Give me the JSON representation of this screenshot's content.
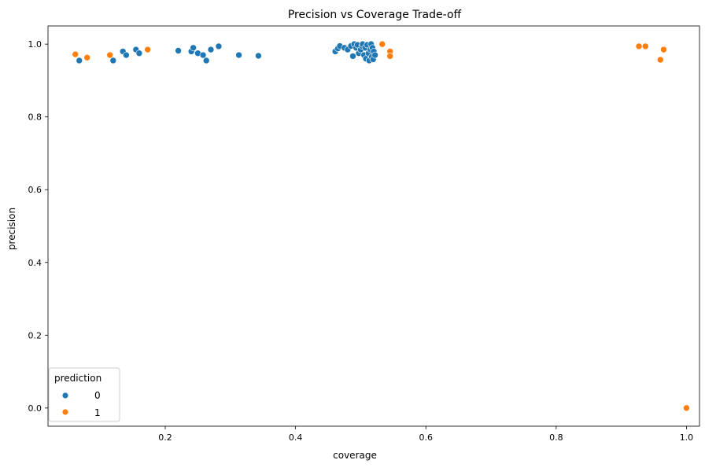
{
  "chart_data": {
    "type": "scatter",
    "title": "Precision vs Coverage Trade-off",
    "xlabel": "coverage",
    "ylabel": "precision",
    "xlim": [
      0.02,
      1.02
    ],
    "ylim": [
      -0.05,
      1.05
    ],
    "xticks": [
      "0.2",
      "0.4",
      "0.6",
      "0.8",
      "1.0"
    ],
    "yticks": [
      "0.0",
      "0.2",
      "0.4",
      "0.6",
      "0.8",
      "1.0"
    ],
    "grid": false,
    "legend": {
      "title": "prediction",
      "placement": "lower-left",
      "entries": [
        "0",
        "1"
      ]
    },
    "series": [
      {
        "name": "0",
        "color": "#1f77b4",
        "points": [
          [
            0.068,
            0.955
          ],
          [
            0.12,
            0.955
          ],
          [
            0.135,
            0.98
          ],
          [
            0.14,
            0.97
          ],
          [
            0.155,
            0.985
          ],
          [
            0.16,
            0.975
          ],
          [
            0.22,
            0.982
          ],
          [
            0.24,
            0.98
          ],
          [
            0.243,
            0.99
          ],
          [
            0.25,
            0.975
          ],
          [
            0.258,
            0.97
          ],
          [
            0.263,
            0.955
          ],
          [
            0.27,
            0.985
          ],
          [
            0.282,
            0.994
          ],
          [
            0.313,
            0.97
          ],
          [
            0.343,
            0.968
          ],
          [
            0.461,
            0.98
          ],
          [
            0.465,
            0.988
          ],
          [
            0.468,
            0.995
          ],
          [
            0.475,
            0.99
          ],
          [
            0.48,
            0.985
          ],
          [
            0.485,
            0.995
          ],
          [
            0.488,
            0.967
          ],
          [
            0.49,
            1.0
          ],
          [
            0.493,
            0.99
          ],
          [
            0.495,
            0.998
          ],
          [
            0.497,
            0.975
          ],
          [
            0.5,
            0.985
          ],
          [
            0.502,
            0.995
          ],
          [
            0.503,
            1.0
          ],
          [
            0.505,
            0.97
          ],
          [
            0.507,
            0.99
          ],
          [
            0.508,
            0.96
          ],
          [
            0.51,
            0.998
          ],
          [
            0.512,
            0.975
          ],
          [
            0.513,
            0.955
          ],
          [
            0.515,
            0.985
          ],
          [
            0.516,
            1.0
          ],
          [
            0.517,
            0.965
          ],
          [
            0.518,
            0.99
          ],
          [
            0.519,
            0.958
          ],
          [
            0.52,
            0.98
          ],
          [
            0.522,
            0.97
          ]
        ]
      },
      {
        "name": "1",
        "color": "#ff7f0e",
        "points": [
          [
            0.062,
            0.972
          ],
          [
            0.08,
            0.963
          ],
          [
            0.115,
            0.97
          ],
          [
            0.173,
            0.985
          ],
          [
            0.533,
            1.0
          ],
          [
            0.545,
            0.98
          ],
          [
            0.545,
            0.967
          ],
          [
            0.927,
            0.994
          ],
          [
            0.937,
            0.994
          ],
          [
            0.96,
            0.957
          ],
          [
            0.965,
            0.985
          ],
          [
            1.0,
            0.0
          ]
        ]
      }
    ]
  }
}
